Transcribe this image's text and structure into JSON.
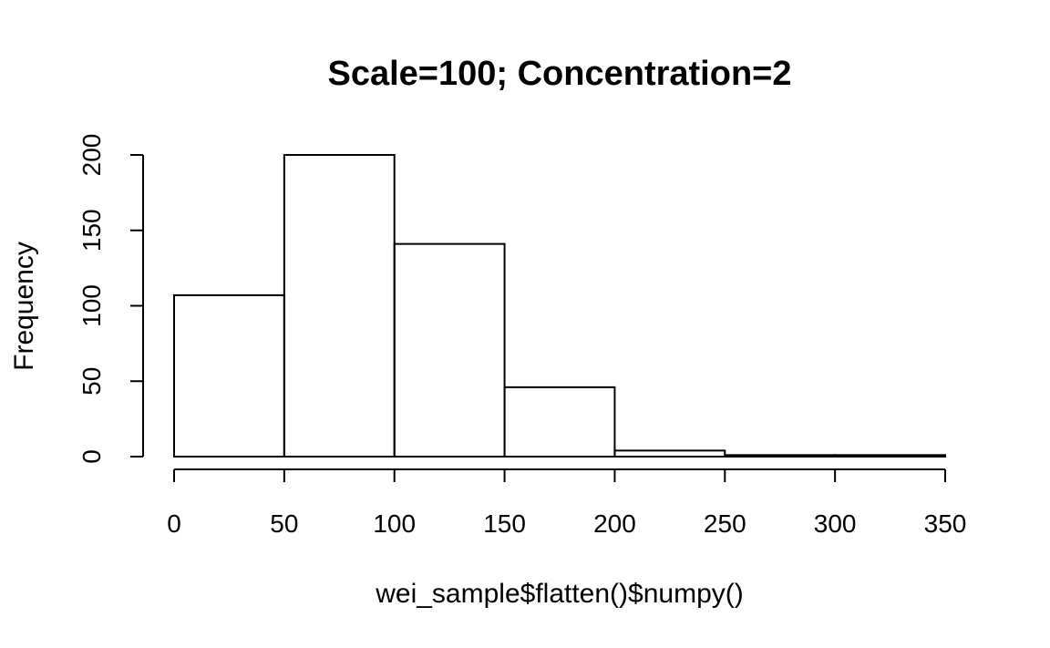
{
  "chart_data": {
    "type": "bar",
    "title": "Scale=100; Concentration=2",
    "xlabel": "wei_sample$flatten()$numpy()",
    "ylabel": "Frequency",
    "bin_edges": [
      0,
      50,
      100,
      150,
      200,
      250,
      300,
      350
    ],
    "values": [
      107,
      200,
      141,
      46,
      4,
      1,
      1
    ],
    "xlim": [
      0,
      350
    ],
    "ylim": [
      0,
      200
    ],
    "x_ticks": [
      0,
      50,
      100,
      150,
      200,
      250,
      300,
      350
    ],
    "y_ticks": [
      0,
      50,
      100,
      150,
      200
    ],
    "x_tick_labels": [
      "0",
      "50",
      "100",
      "150",
      "200",
      "250",
      "300",
      "350"
    ],
    "y_tick_labels": [
      "0",
      "50",
      "100",
      "150",
      "200"
    ],
    "grid": false,
    "legend": "none",
    "colors": {
      "bar_fill": "#ffffff",
      "bar_stroke": "#000000",
      "text": "#000000"
    }
  }
}
